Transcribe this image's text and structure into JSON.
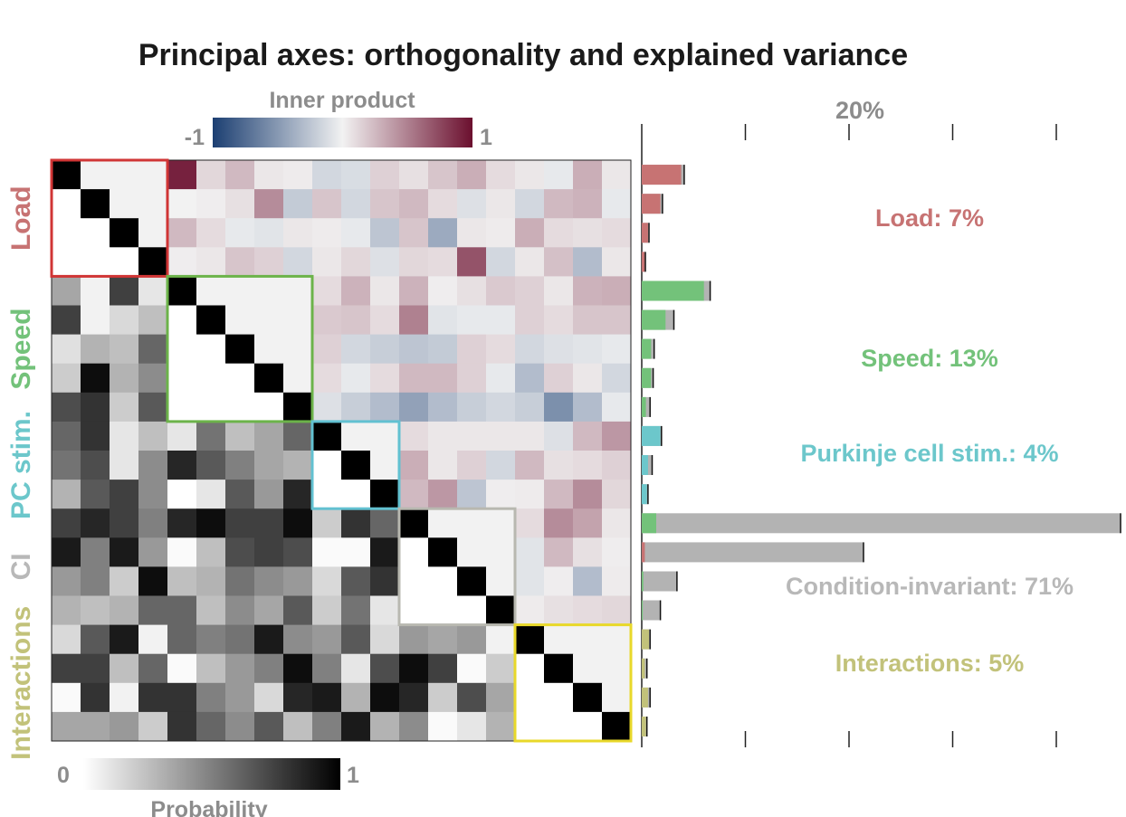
{
  "chart_data": {
    "type": "heatmap",
    "title": "Principal axes: orthogonality and explained variance",
    "colorbars": {
      "inner_product": {
        "label": "Inner product",
        "min_label": "-1",
        "max_label": "1",
        "colors": {
          "neg": "#1c3f72",
          "mid": "#f2f2f2",
          "pos": "#6b0f2e"
        }
      },
      "probability": {
        "label": "Probability",
        "min_label": "0",
        "max_label": "1",
        "colors": {
          "low": "#ffffff",
          "high": "#000000"
        }
      }
    },
    "variance_axis": {
      "tick_label": "20%",
      "max_percent": 47
    },
    "groups": [
      {
        "label": "Load",
        "summary": "Load: 7%",
        "color": "#c77373",
        "start": 0,
        "size": 4
      },
      {
        "label": "Speed",
        "summary": "Speed: 13%",
        "color": "#73c27a",
        "start": 4,
        "size": 5
      },
      {
        "label": "PC stim.",
        "summary": "Purkinje cell stim.: 4%",
        "color": "#6cc7cb",
        "start": 9,
        "size": 3
      },
      {
        "label": "CI",
        "summary": "Condition-invariant: 71%",
        "color": "#b8b8b8",
        "start": 12,
        "size": 4
      },
      {
        "label": "Interactions",
        "summary": "Interactions: 5%",
        "color": "#c2c27a",
        "start": 16,
        "size": 4
      }
    ],
    "box_colors": [
      "#d03535",
      "#6cb34a",
      "#62c1d1",
      "#b8b8b0",
      "#e8d82a"
    ],
    "inner_product_upper": [
      [
        0.92,
        0.12,
        0.25,
        0.05,
        0.03,
        -0.15,
        -0.12,
        0.15,
        0.08,
        0.2,
        0.3,
        0.1,
        0.05,
        -0.05,
        0.3,
        0.05,
        -0.05
      ],
      [
        0.0,
        0.02,
        0.08,
        0.45,
        -0.22,
        0.2,
        -0.15,
        0.2,
        0.25,
        0.1,
        -0.1,
        0.05,
        -0.15,
        0.25,
        0.28,
        -0.05,
        0.0
      ],
      [
        0.25,
        0.1,
        -0.05,
        -0.08,
        0.05,
        0.03,
        -0.05,
        -0.25,
        0.2,
        -0.4,
        0.05,
        0.03,
        0.3,
        0.1,
        0.08,
        0.1,
        0.1
      ],
      [
        0.02,
        0.05,
        0.2,
        0.15,
        -0.15,
        0.05,
        0.12,
        -0.1,
        0.12,
        0.1,
        0.7,
        -0.15,
        0.05,
        0.22,
        -0.3,
        0.05,
        0.05
      ],
      [
        0.1,
        0.28,
        0.05,
        0.28,
        0.02,
        0.08,
        0.18,
        0.15,
        0.05,
        0.28,
        0.3
      ],
      [
        0.18,
        0.2,
        0.1,
        0.5,
        -0.08,
        -0.05,
        -0.05,
        0.15,
        0.1,
        0.2,
        0.2
      ],
      [
        0.15,
        -0.15,
        -0.2,
        -0.25,
        -0.22,
        0.15,
        0.1,
        -0.15,
        -0.1,
        -0.08,
        -0.05
      ],
      [
        0.1,
        -0.05,
        0.1,
        0.25,
        0.25,
        0.15,
        -0.05,
        -0.3,
        0.15,
        0.05,
        -0.15
      ],
      [
        -0.1,
        -0.2,
        -0.3,
        -0.45,
        -0.3,
        -0.2,
        -0.15,
        -0.2,
        -0.55,
        -0.3,
        -0.05
      ],
      [
        0.1,
        0.05,
        0.05,
        0.05,
        0.05,
        -0.1,
        0.25,
        0.4,
        0.1
      ],
      [
        0.3,
        0.05,
        0.15,
        -0.15,
        0.25,
        0.08,
        0.1,
        0.15,
        0.45
      ],
      [
        0.25,
        0.4,
        -0.25,
        0.02,
        0.03,
        0.25,
        0.45,
        0.12,
        0.05
      ],
      [
        0.1,
        0.45,
        0.35,
        0.05,
        0.5
      ],
      [
        -0.08,
        0.25,
        0.08,
        0.02,
        0.0
      ],
      [
        -0.08,
        0.02,
        -0.3,
        0.03,
        0.0
      ],
      [
        0.03,
        0.08,
        0.1,
        0.12,
        0.1
      ],
      [
        0.08,
        0.05,
        0.5
      ],
      [
        0.2,
        0.3,
        -0.1
      ],
      [
        0.1,
        0.1,
        0.35
      ],
      [
        0.05,
        0.0,
        0.0
      ]
    ],
    "probability_lower": [
      [],
      [],
      [],
      [],
      [
        0.35,
        0.05,
        0.75,
        0.1
      ],
      [
        0.75,
        0.05,
        0.15,
        0.25
      ],
      [
        0.12,
        0.3,
        0.25,
        0.6
      ],
      [
        0.2,
        0.95,
        0.3,
        0.45
      ],
      [
        0.7,
        0.8,
        0.2,
        0.65,
        0.0,
        0.5,
        0.3,
        0.1,
        0.0
      ],
      [
        0.6,
        0.8,
        0.1,
        0.25,
        0.1,
        0.55,
        0.25,
        0.35,
        0.6
      ],
      [
        0.55,
        0.7,
        0.1,
        0.45,
        0.85,
        0.65,
        0.5,
        0.35,
        0.3
      ],
      [
        0.3,
        0.65,
        0.75,
        0.45,
        0.0,
        0.1,
        0.65,
        0.4,
        0.85
      ],
      [
        0.75,
        0.85,
        0.75,
        0.5,
        0.85,
        0.95,
        0.75,
        0.75,
        0.95,
        0.2,
        0.8,
        0.6
      ],
      [
        0.9,
        0.5,
        0.9,
        0.4,
        0.02,
        0.25,
        0.7,
        0.75,
        0.7,
        0.02,
        0.02,
        0.9
      ],
      [
        0.4,
        0.5,
        0.2,
        0.95,
        0.25,
        0.3,
        0.55,
        0.45,
        0.4,
        0.15,
        0.65,
        0.8
      ],
      [
        0.3,
        0.25,
        0.3,
        0.6,
        0.6,
        0.25,
        0.45,
        0.35,
        0.65,
        0.2,
        0.55,
        0.1
      ],
      [
        0.15,
        0.65,
        0.9,
        0.05,
        0.6,
        0.5,
        0.55,
        0.9,
        0.45,
        0.4,
        0.65,
        0.15,
        0.4,
        0.35,
        0.4,
        0.05
      ],
      [
        0.75,
        0.75,
        0.25,
        0.6,
        0.02,
        0.25,
        0.4,
        0.5,
        0.95,
        0.5,
        0.1,
        0.7,
        0.95,
        0.75,
        0.02,
        0.2
      ],
      [
        0.02,
        0.8,
        0.05,
        0.8,
        0.8,
        0.5,
        0.4,
        0.15,
        0.85,
        0.9,
        0.3,
        0.95,
        0.85,
        0.2,
        0.7,
        0.35
      ],
      [
        0.35,
        0.35,
        0.4,
        0.2,
        0.8,
        0.6,
        0.45,
        0.65,
        0.25,
        0.5,
        0.9,
        0.3,
        0.45,
        0.02,
        0.1,
        0.3
      ]
    ],
    "variance_bars": [
      {
        "fill_color": "#c77373",
        "fill": 3.8,
        "total": 4.1
      },
      {
        "fill_color": "#c77373",
        "fill": 1.8,
        "total": 2.0
      },
      {
        "fill_color": "#c77373",
        "fill": 0.6,
        "total": 0.7
      },
      {
        "fill_color": "#c77373",
        "fill": 0.3,
        "total": 0.35
      },
      {
        "fill_color": "#73c27a",
        "fill": 6.0,
        "total": 6.6
      },
      {
        "fill_color": "#73c27a",
        "fill": 2.3,
        "total": 3.1
      },
      {
        "fill_color": "#73c27a",
        "fill": 0.9,
        "total": 1.2
      },
      {
        "fill_color": "#73c27a",
        "fill": 0.9,
        "total": 1.1
      },
      {
        "fill_color": "#73c27a",
        "fill": 0.4,
        "total": 0.8
      },
      {
        "fill_color": "#6cc7cb",
        "fill": 1.8,
        "total": 1.9
      },
      {
        "fill_color": "#6cc7cb",
        "fill": 0.6,
        "total": 1.0
      },
      {
        "fill_color": "#6cc7cb",
        "fill": 0.5,
        "total": 0.6
      },
      {
        "fill_color": "#73c27a",
        "fill": 1.4,
        "total": 46.2
      },
      {
        "fill_color": "#c77373",
        "fill": 0.3,
        "total": 21.4
      },
      {
        "fill_color": "#73c27a",
        "fill": 0.15,
        "total": 3.4
      },
      {
        "fill_color": "#73c27a",
        "fill": 0.1,
        "total": 1.8
      },
      {
        "fill_color": "#c2c27a",
        "fill": 0.7,
        "total": 0.8
      },
      {
        "fill_color": "#c2c27a",
        "fill": 0.3,
        "total": 0.5
      },
      {
        "fill_color": "#c2c27a",
        "fill": 0.6,
        "total": 0.8
      },
      {
        "fill_color": "#c2c27a",
        "fill": 0.4,
        "total": 0.5
      }
    ]
  }
}
